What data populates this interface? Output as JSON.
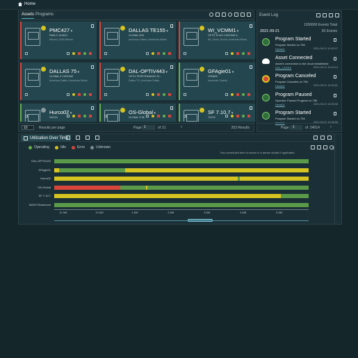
{
  "breadcrumb": {
    "home": "Home"
  },
  "assets": {
    "tabs": [
      "Assets",
      "Programs"
    ],
    "cards": [
      {
        "name": "PMC427",
        "sub": "PMM-C 1015/01",
        "loc": "Wixom | 1600 Wixom",
        "state": "red",
        "badge": "yellow"
      },
      {
        "name": "DALLAS TE155",
        "sub": "GLOBAL 5/94",
        "loc": "Americas Dallas | Americas Dallas",
        "state": "red",
        "badge": "yellow"
      },
      {
        "name": "WI_VCMM1",
        "sub": "OPTIV M HIO CHROME 6...",
        "loc": "WI_Demo_Room | Americas Milwa...",
        "state": "red",
        "badge": "yellow"
      },
      {
        "name": "DALLAS 75",
        "sub": "GLOBAL 5 CHROME",
        "loc": "Americas Dallas | Americas Dallas",
        "state": "red",
        "badge": "yellow"
      },
      {
        "name": "DAL-OPTIV443",
        "sub": "OPTIV PERFORMANCE HI...",
        "loc": "Dallas TX | Americas Dallas",
        "state": "red",
        "badge": "yellow"
      },
      {
        "name": "GFAgie01",
        "sub": "HPM800",
        "loc": "Americas Chamb...",
        "state": "green",
        "badge": "yellow"
      },
      {
        "name": "Hurco02",
        "sub": "VMX24",
        "loc": "",
        "state": "green",
        "badge": "grey"
      },
      {
        "name": "OS-Global",
        "sub": "GLOBAL S 5E",
        "loc": "",
        "state": "green",
        "badge": "yellow"
      },
      {
        "name": "SF 7.10.7",
        "sub": "TIGO2",
        "loc": "",
        "state": "green",
        "badge": "yellow"
      }
    ],
    "pager": {
      "per_page_value": "10",
      "per_page_label": "Results per page",
      "page_label": "Page",
      "page_value": "1",
      "of_label": "of",
      "total_pages": "21",
      "results": "203 Results"
    }
  },
  "event_log": {
    "title": "Event Log",
    "total": "1200669 Events Total",
    "date": "2021-09-21",
    "day_count": "50 Events",
    "events": [
      {
        "title": "Program Started",
        "desc": "Program Started on 756",
        "who": "Hexa01",
        "when": "2021-09-21 10:40:27",
        "icon": "play"
      },
      {
        "title": "Asset Connected",
        "desc": "Asset's connection to the cloud established",
        "who": "DSL_LEDES",
        "when": "2021-09-21 10:40:13",
        "icon": "cloud"
      },
      {
        "title": "Program Canceled",
        "desc": "Program Canceled on 756",
        "who": "Hexa01",
        "when": "2021-09-21 10:39:51",
        "icon": "cancel"
      },
      {
        "title": "Program Paused",
        "desc": "Operator Paused Program on 756",
        "who": "Hexa01",
        "when": "2021-09-21 10:39:05",
        "icon": "pause"
      },
      {
        "title": "Program Started",
        "desc": "Program Started on 756",
        "who": "Hexa01",
        "when": "2021-09-21 10:38:56",
        "icon": "play"
      }
    ],
    "pager": {
      "page_label": "Page",
      "page_value": "1",
      "of_label": "of",
      "total_pages": "24014"
    }
  },
  "utilization": {
    "tab_label": "Utilization Over Time",
    "legend": [
      {
        "label": "Operating",
        "color": "#67b04c"
      },
      {
        "label": "Idle",
        "color": "#d6c421"
      },
      {
        "label": "Error",
        "color": "#d9453b"
      },
      {
        "label": "Unknown",
        "color": "#7d8c90"
      }
    ],
    "note": "Non-scheduled time is shown in a darker shade if applicable.",
    "rows": [
      {
        "label": "DAL-OPTIV443",
        "segments": [
          {
            "start": 0,
            "end": 1,
            "state": "operating"
          }
        ]
      },
      {
        "label": "GFAgie01",
        "segments": [
          {
            "start": 0,
            "end": 0.02,
            "state": "idle"
          },
          {
            "start": 0.28,
            "end": 1,
            "state": "idle"
          }
        ]
      },
      {
        "label": "Hurco02",
        "segments": [
          {
            "start": 0,
            "end": 0.2,
            "state": "idle"
          },
          {
            "start": 0.2,
            "end": 0.72,
            "state": "idle"
          },
          {
            "start": 0.73,
            "end": 1,
            "state": "idle"
          }
        ]
      },
      {
        "label": "OS-Global",
        "segments": [
          {
            "start": 0,
            "end": 0.26,
            "state": "error"
          },
          {
            "start": 0.36,
            "end": 0.365,
            "state": "idle"
          }
        ]
      },
      {
        "label": "SF 7.10.7",
        "segments": [
          {
            "start": 0,
            "end": 0.89,
            "state": "idle"
          }
        ]
      },
      {
        "label": "NASH Showroom",
        "segments": [
          {
            "start": 0,
            "end": 1,
            "state": "operating"
          }
        ]
      }
    ],
    "ticks": [
      "11 AM",
      "12 AM",
      "1 AM",
      "2 AM",
      "3 AM",
      "4 AM",
      "5 AM"
    ],
    "side_label": "Off"
  }
}
